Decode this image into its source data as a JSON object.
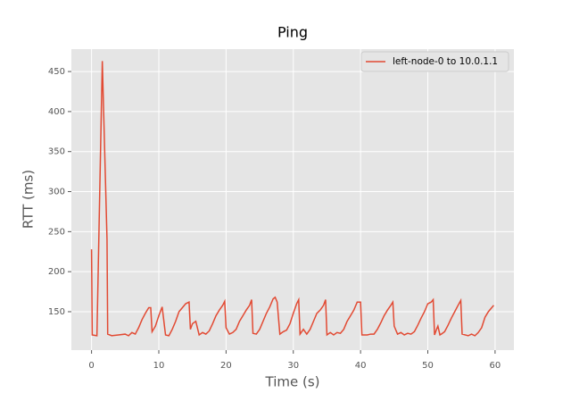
{
  "chart_data": {
    "type": "line",
    "title": "Ping",
    "x_label": "Time (s)",
    "y_label": "RTT (ms)",
    "x": [
      0,
      0.1,
      0.8,
      1.6,
      2.3,
      2.4,
      3,
      4,
      5,
      5.5,
      6,
      6.5,
      7,
      7.5,
      8,
      8.5,
      8.8,
      9,
      9.5,
      10,
      10.5,
      11,
      11.5,
      12,
      12.5,
      13,
      13.5,
      14,
      14.5,
      14.7,
      15,
      15.5,
      16,
      16.5,
      17,
      17.5,
      18,
      18.5,
      19,
      19.5,
      19.8,
      20,
      20.5,
      21,
      21.5,
      22,
      22.5,
      23,
      23.5,
      23.8,
      24,
      24.5,
      25,
      25.5,
      26,
      26.5,
      27,
      27.3,
      27.6,
      28,
      28.5,
      29,
      29.5,
      30,
      30.5,
      30.8,
      31,
      31.5,
      32,
      32.5,
      33,
      33.5,
      34,
      34.5,
      34.8,
      35,
      35.5,
      36,
      36.5,
      37,
      37.5,
      38,
      38.5,
      39,
      39.5,
      40,
      40.2,
      41,
      41.5,
      42,
      42.5,
      43,
      43.5,
      44,
      44.5,
      44.8,
      45,
      45.5,
      46,
      46.5,
      47,
      47.5,
      48,
      48.5,
      49,
      49.5,
      50,
      50.5,
      50.8,
      51,
      51.3,
      51.5,
      51.8,
      52,
      52.5,
      53,
      53.5,
      54,
      54.5,
      54.9,
      55.1,
      56,
      56.5,
      57,
      57.5,
      58,
      58.5,
      59,
      59.5,
      59.8
    ],
    "series": [
      {
        "name": "left-node-0 to 10.0.1.1",
        "color": "#e24a33",
        "values": [
          228,
          121,
          120,
          463,
          240,
          122,
          120,
          121,
          122,
          120,
          124,
          122,
          130,
          140,
          148,
          155,
          155,
          125,
          132,
          145,
          156,
          121,
          120,
          128,
          138,
          150,
          155,
          160,
          162,
          128,
          135,
          138,
          121,
          124,
          122,
          126,
          135,
          145,
          152,
          158,
          163,
          130,
          122,
          124,
          128,
          138,
          145,
          152,
          158,
          165,
          123,
          122,
          128,
          138,
          148,
          156,
          166,
          168,
          162,
          122,
          125,
          127,
          135,
          148,
          160,
          165,
          122,
          128,
          122,
          128,
          138,
          148,
          152,
          158,
          165,
          121,
          124,
          121,
          124,
          123,
          128,
          138,
          145,
          152,
          162,
          162,
          121,
          121,
          122,
          122,
          128,
          136,
          145,
          152,
          158,
          162,
          132,
          122,
          124,
          121,
          123,
          122,
          125,
          133,
          142,
          150,
          160,
          162,
          165,
          121,
          128,
          132,
          121,
          122,
          125,
          133,
          142,
          150,
          158,
          164,
          122,
          120,
          122,
          120,
          124,
          130,
          143,
          150,
          155,
          158
        ]
      }
    ],
    "xlim": [
      -3,
      62.8
    ],
    "ylim": [
      102,
      478
    ],
    "xticks": [
      0,
      10,
      20,
      30,
      40,
      50,
      60
    ],
    "yticks": [
      150,
      200,
      250,
      300,
      350,
      400,
      450
    ],
    "grid": true,
    "legend": "upper right"
  }
}
